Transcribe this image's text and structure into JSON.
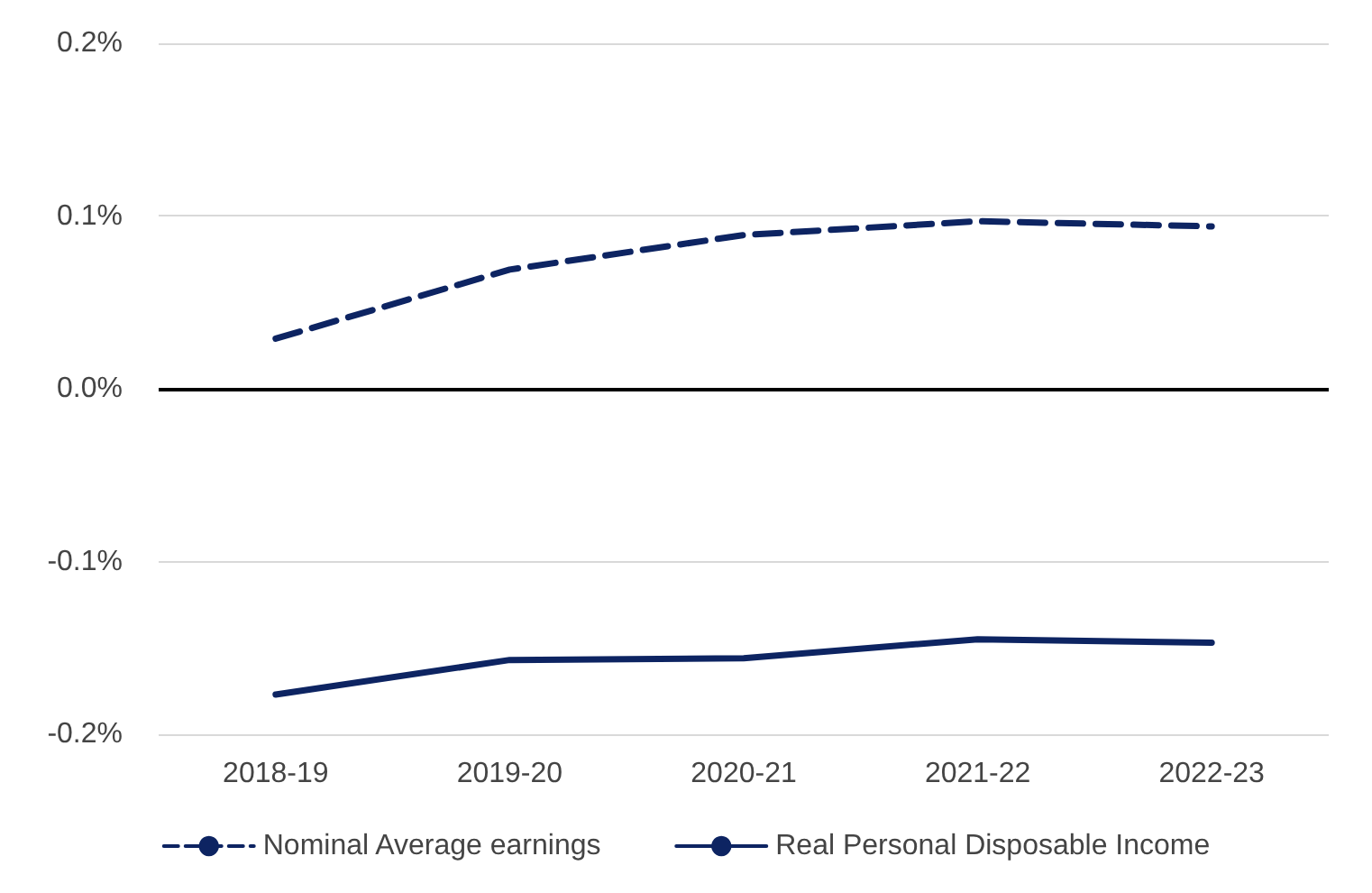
{
  "chart_data": {
    "type": "line",
    "categories": [
      "2018-19",
      "2019-20",
      "2020-21",
      "2021-22",
      "2022-23"
    ],
    "series": [
      {
        "name": "Nominal Average earnings",
        "color": "#0d2462",
        "line_style": "dashed",
        "values": [
          0.029,
          0.069,
          0.089,
          0.097,
          0.094
        ]
      },
      {
        "name": "Real Personal Disposable Income",
        "color": "#0d2462",
        "line_style": "solid",
        "values": [
          -0.177,
          -0.157,
          -0.156,
          -0.145,
          -0.147
        ]
      }
    ],
    "ylim": [
      -0.2,
      0.2
    ],
    "yticks": [
      {
        "value": -0.2,
        "label": "-0.2%"
      },
      {
        "value": -0.1,
        "label": "-0.1%"
      },
      {
        "value": 0,
        "label": "0.0%"
      },
      {
        "value": 0.1,
        "label": "0.1%"
      },
      {
        "value": 0.2,
        "label": "0.2%"
      }
    ],
    "ref_lines": [
      {
        "axis": "y",
        "value": 0,
        "color": "#000000"
      }
    ],
    "grid": "y",
    "legend": "bottom",
    "marker": "none"
  }
}
